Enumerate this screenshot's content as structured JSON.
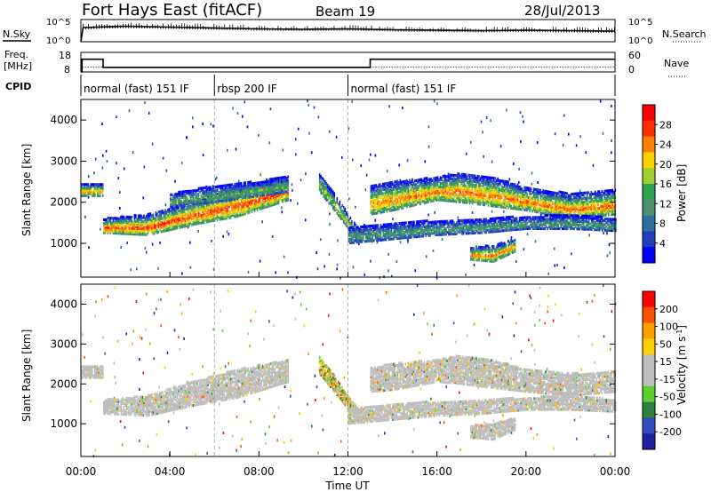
{
  "header": {
    "title": "Fort Hays East (fitACF)",
    "beam": "Beam 19",
    "date": "28/Jul/2013"
  },
  "noise_panel": {
    "left_label": "N.Sky",
    "right_label": "N.Search",
    "left_ticks": [
      "10^5",
      "10^0"
    ],
    "right_ticks": [
      "10^5",
      "10^0"
    ]
  },
  "freq_panel": {
    "left_label_1": "Freq.",
    "left_label_2": "[MHz]",
    "right_label": "Nave",
    "left_ticks": [
      "18",
      "8"
    ],
    "right_ticks": [
      "60",
      "0"
    ]
  },
  "cpid": {
    "label": "CPID",
    "segments": [
      {
        "text": "normal (fast) 151 IF",
        "start_hour": 0,
        "end_hour": 6
      },
      {
        "text": "rbsp 200 IF",
        "start_hour": 6,
        "end_hour": 12
      },
      {
        "text": "normal (fast) 151 IF",
        "start_hour": 12,
        "end_hour": 24
      }
    ]
  },
  "xaxis": {
    "label": "Time UT",
    "ticks": [
      "00:00",
      "04:00",
      "08:00",
      "12:00",
      "16:00",
      "20:00",
      "00:00"
    ]
  },
  "colors": {
    "power_scale": [
      "#0000ff",
      "#1f3fbf",
      "#2f6f9f",
      "#4f8f6f",
      "#2fa04f",
      "#9fcf2f",
      "#ffd000",
      "#ff8000",
      "#ff3000",
      "#ff0000"
    ],
    "velocity_scale": [
      "#1f1f9f",
      "#2f4fbf",
      "#2f7f3f",
      "#5fcf2f",
      "#bebebe",
      "#bebebe",
      "#ffd000",
      "#ff9f00",
      "#ff5000",
      "#ff0000"
    ],
    "ground_scatter": "#bebebe"
  },
  "chart_data": [
    {
      "type": "line",
      "name": "noise",
      "x": [
        0,
        0.1,
        2,
        4,
        6,
        8,
        10,
        12,
        14,
        16,
        18,
        20,
        22,
        24
      ],
      "series": [
        {
          "name": "N.Sky",
          "values": [
            0,
            3.2,
            3.5,
            3.3,
            3.1,
            2.9,
            2.8,
            2.9,
            2.7,
            2.6,
            2.5,
            2.6,
            2.5,
            2.4
          ]
        },
        {
          "name": "N.Search",
          "values": [
            0,
            3.0,
            3.2,
            3.1,
            2.9,
            2.8,
            2.7,
            2.8,
            2.6,
            2.5,
            2.4,
            2.5,
            2.4,
            2.3
          ]
        }
      ],
      "ylim": [
        0,
        5
      ]
    },
    {
      "type": "line",
      "name": "frequency",
      "x": [
        0,
        0.05,
        1,
        13,
        24
      ],
      "series": [
        {
          "name": "Freq",
          "values": [
            8,
            14.5,
            10.3,
            14.5,
            14.5
          ]
        },
        {
          "name": "Nave",
          "values": [
            0,
            15,
            15,
            15,
            15
          ]
        }
      ],
      "ylim_left": [
        8,
        18
      ],
      "ylim_right": [
        0,
        60
      ]
    },
    {
      "type": "heatmap",
      "name": "power",
      "ylabel": "Slant Range [km]",
      "xlim": [
        0,
        24
      ],
      "ylim": [
        180,
        4500
      ],
      "yticks": [
        1000,
        2000,
        3000,
        4000
      ],
      "colorbar_label": "Power [dB]",
      "colorbar_ticks": [
        "28",
        "24",
        "20",
        "16",
        "12",
        "8",
        "4"
      ],
      "colorbar_range": [
        0,
        30
      ],
      "bands": [
        {
          "x": [
            0,
            1
          ],
          "y0": [
            2150,
            2150
          ],
          "y1": [
            2450,
            2450
          ],
          "peak": 22
        },
        {
          "x": [
            1,
            3,
            5,
            7,
            9.3
          ],
          "y0": [
            1250,
            1200,
            1450,
            1650,
            2050
          ],
          "y1": [
            1600,
            1700,
            2050,
            2350,
            2600
          ],
          "peak": 26
        },
        {
          "x": [
            4,
            6,
            8,
            9.3
          ],
          "y0": [
            1900,
            2000,
            2150,
            2250
          ],
          "y1": [
            2200,
            2400,
            2500,
            2650
          ],
          "peak": 14
        },
        {
          "x": [
            10.7,
            11.5,
            12.5
          ],
          "y0": [
            2250,
            1700,
            1000
          ],
          "y1": [
            2700,
            2100,
            1300
          ],
          "peak": 18
        },
        {
          "x": [
            13,
            14,
            16,
            17,
            18.5,
            20,
            22,
            24
          ],
          "y0": [
            1700,
            1800,
            2050,
            2000,
            1900,
            1800,
            1600,
            1700
          ],
          "y1": [
            2400,
            2500,
            2600,
            2700,
            2600,
            2350,
            2200,
            2300
          ],
          "peak": 24
        },
        {
          "x": [
            12,
            14,
            16,
            18,
            20,
            22,
            24
          ],
          "y0": [
            1000,
            1100,
            1200,
            1250,
            1350,
            1350,
            1300
          ],
          "y1": [
            1400,
            1500,
            1550,
            1600,
            1650,
            1700,
            1600
          ],
          "peak": 12
        },
        {
          "x": [
            17.5,
            18.5,
            19.5
          ],
          "y0": [
            600,
            550,
            800
          ],
          "y1": [
            900,
            950,
            1100
          ],
          "peak": 24
        }
      ]
    },
    {
      "type": "heatmap",
      "name": "velocity",
      "ylabel": "Slant Range [km]",
      "xlim": [
        0,
        24
      ],
      "ylim": [
        180,
        4500
      ],
      "yticks": [
        1000,
        2000,
        3000,
        4000
      ],
      "colorbar_label": "Velocity [m s^-1]",
      "colorbar_ticks": [
        "200",
        "100",
        "50",
        "15",
        "-15",
        "-50",
        "-100",
        "-200"
      ],
      "colorbar_range": [
        -250,
        250
      ],
      "bands": [
        {
          "x": [
            0,
            1
          ],
          "y0": [
            2150,
            2150
          ],
          "y1": [
            2450,
            2450
          ],
          "gs": true
        },
        {
          "x": [
            1,
            3,
            5,
            7,
            9.3
          ],
          "y0": [
            1250,
            1200,
            1450,
            1650,
            2050
          ],
          "y1": [
            1600,
            1700,
            2050,
            2350,
            2600
          ],
          "gs": true
        },
        {
          "x": [
            10.7,
            11.5,
            12.5
          ],
          "y0": [
            2250,
            1700,
            1000
          ],
          "y1": [
            2700,
            2100,
            1300
          ],
          "gs": false
        },
        {
          "x": [
            13,
            14,
            16,
            17,
            18.5,
            20,
            22,
            24
          ],
          "y0": [
            1800,
            1850,
            2050,
            2000,
            1900,
            1800,
            1700,
            1800
          ],
          "y1": [
            2400,
            2500,
            2600,
            2700,
            2600,
            2350,
            2250,
            2300
          ],
          "gs": true
        },
        {
          "x": [
            12,
            14,
            16,
            18,
            20,
            22,
            24
          ],
          "y0": [
            1000,
            1100,
            1200,
            1250,
            1350,
            1350,
            1300
          ],
          "y1": [
            1400,
            1500,
            1550,
            1600,
            1650,
            1700,
            1600
          ],
          "gs": true
        },
        {
          "x": [
            17.5,
            18.5,
            19.5
          ],
          "y0": [
            650,
            600,
            850
          ],
          "y1": [
            950,
            1000,
            1150
          ],
          "gs": true
        }
      ]
    }
  ]
}
